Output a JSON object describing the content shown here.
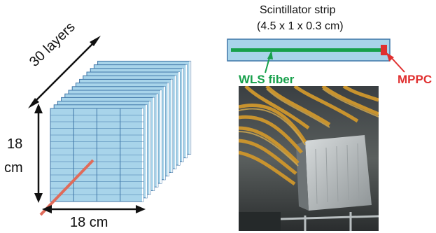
{
  "detector": {
    "layers_label": "30 layers",
    "height_label_line1": "18",
    "height_label_line2": "cm",
    "width_label": "18 cm",
    "layer_color": "#a8d4ea",
    "strip_line_color": "#3f76a8",
    "arrow_color": "#111111",
    "beam_color": "#e06b5a"
  },
  "strip": {
    "title_line1": "Scintillator strip",
    "title_line2": "(4.5 x 1 x 0.3 cm)",
    "fiber_label": "WLS fiber",
    "sensor_label": "MPPC",
    "strip_color": "#a8d4ea",
    "fiber_color": "#17a04b",
    "sensor_color": "#e03030"
  },
  "photo": {
    "description_icon": "detector-photo"
  }
}
